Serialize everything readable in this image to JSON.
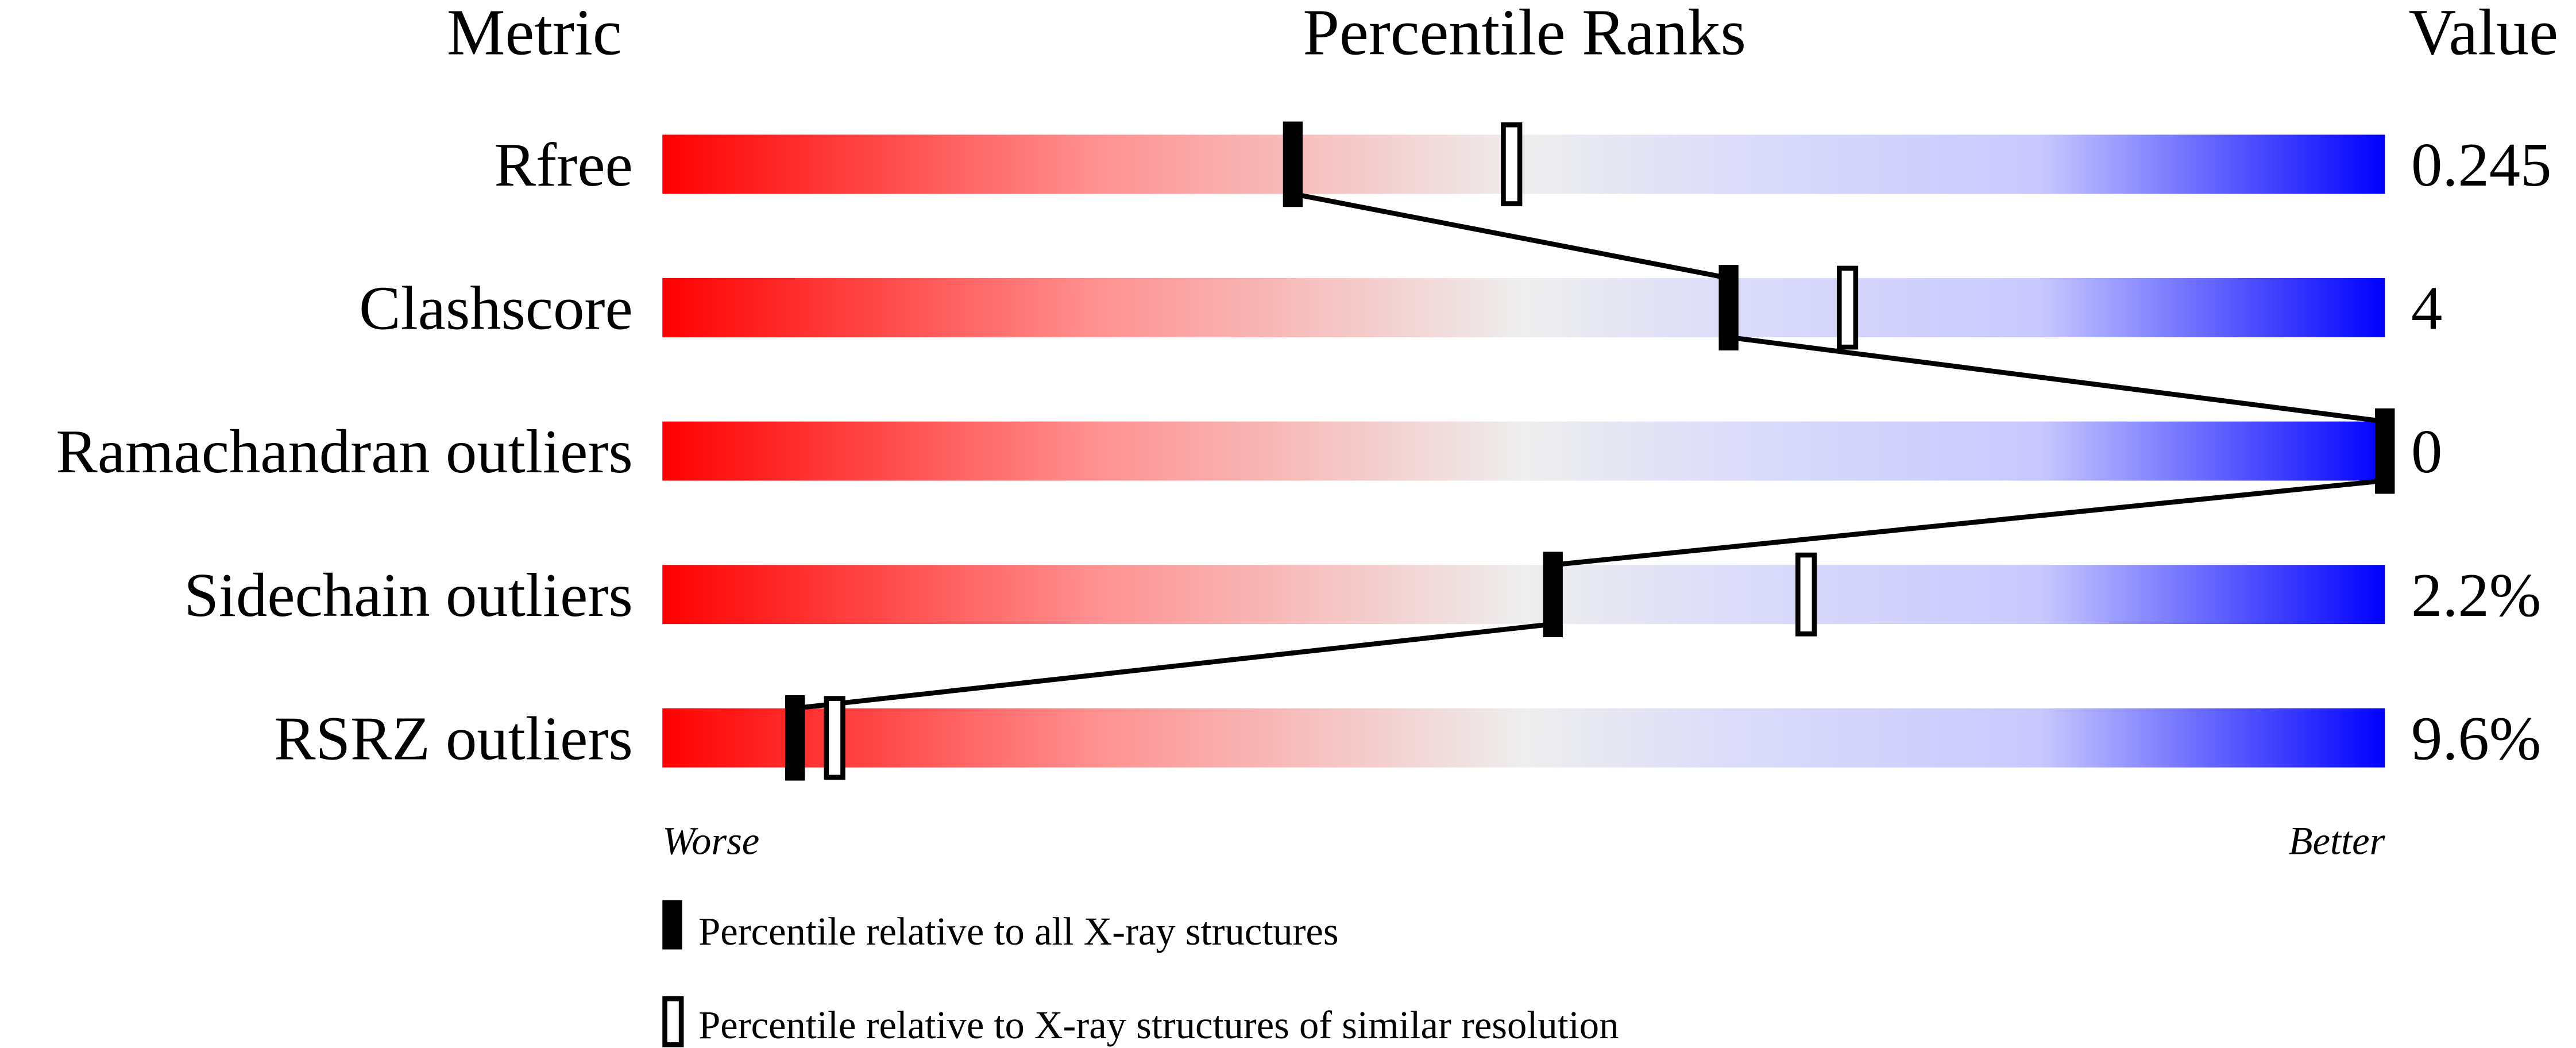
{
  "chart_data": {
    "type": "percentile-slider",
    "headers": {
      "metric": "Metric",
      "ranks": "Percentile Ranks",
      "value": "Value"
    },
    "axis": {
      "left_label": "Worse",
      "right_label": "Better",
      "range": [
        0,
        100
      ]
    },
    "gradient_colors": [
      "#ff0000",
      "#f0f0f0",
      "#0000ff"
    ],
    "metrics": [
      {
        "name": "Rfree",
        "value": "0.245",
        "percentile_all": 36.6,
        "percentile_similar": 49.3
      },
      {
        "name": "Clashscore",
        "value": "4",
        "percentile_all": 61.9,
        "percentile_similar": 68.8
      },
      {
        "name": "Ramachandran outliers",
        "value": "0",
        "percentile_all": 100,
        "percentile_similar": 100
      },
      {
        "name": "Sidechain outliers",
        "value": "2.2%",
        "percentile_all": 51.7,
        "percentile_similar": 66.4
      },
      {
        "name": "RSRZ outliers",
        "value": "9.6%",
        "percentile_all": 7.7,
        "percentile_similar": 10.0
      }
    ],
    "legend": [
      {
        "marker": "filled",
        "label": "Percentile relative to all X-ray structures"
      },
      {
        "marker": "hollow",
        "label": "Percentile relative to X-ray structures of similar resolution"
      }
    ]
  }
}
